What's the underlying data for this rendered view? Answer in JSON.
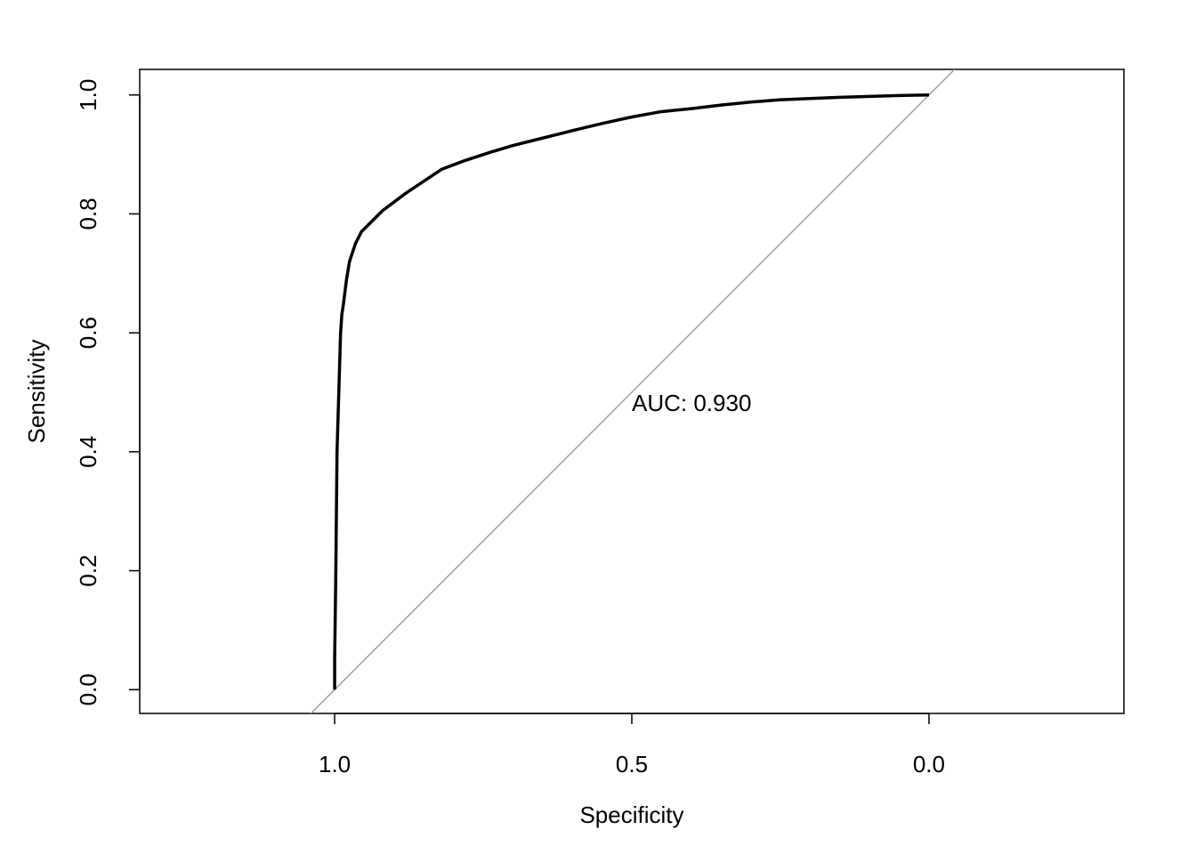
{
  "chart_data": {
    "type": "line",
    "x_label": "Specificity",
    "y_label": "Sensitivity",
    "annotation": "AUC: 0.930",
    "reference_diagonal": true,
    "reference_color": "#a0a0a0",
    "xlim": [
      1.328,
      -0.328
    ],
    "ylim": [
      -0.04,
      1.043
    ],
    "xticks": [
      {
        "value": 1,
        "label": "1.0"
      },
      0.5,
      {
        "value": 0,
        "label": "0.0"
      }
    ],
    "yticks": [
      {
        "value": 0,
        "label": "0.0"
      },
      0.2,
      0.4,
      0.6,
      0.8,
      {
        "value": 1,
        "label": "1.0"
      }
    ],
    "series": [
      {
        "color": "#000000",
        "x": [
          1.0,
          1.0,
          0.998,
          0.996,
          0.993,
          0.99,
          0.988,
          0.985,
          0.98,
          0.975,
          0.965,
          0.955,
          0.94,
          0.92,
          0.9,
          0.88,
          0.85,
          0.82,
          0.78,
          0.74,
          0.7,
          0.66,
          0.6,
          0.55,
          0.5,
          0.45,
          0.4,
          0.35,
          0.3,
          0.25,
          0.15,
          0.05,
          0.0
        ],
        "values": [
          0.0,
          0.05,
          0.2,
          0.4,
          0.5,
          0.6,
          0.63,
          0.65,
          0.69,
          0.72,
          0.75,
          0.77,
          0.785,
          0.805,
          0.82,
          0.835,
          0.855,
          0.875,
          0.89,
          0.903,
          0.915,
          0.925,
          0.94,
          0.952,
          0.963,
          0.972,
          0.977,
          0.983,
          0.988,
          0.992,
          0.996,
          0.999,
          1.0
        ]
      }
    ]
  }
}
